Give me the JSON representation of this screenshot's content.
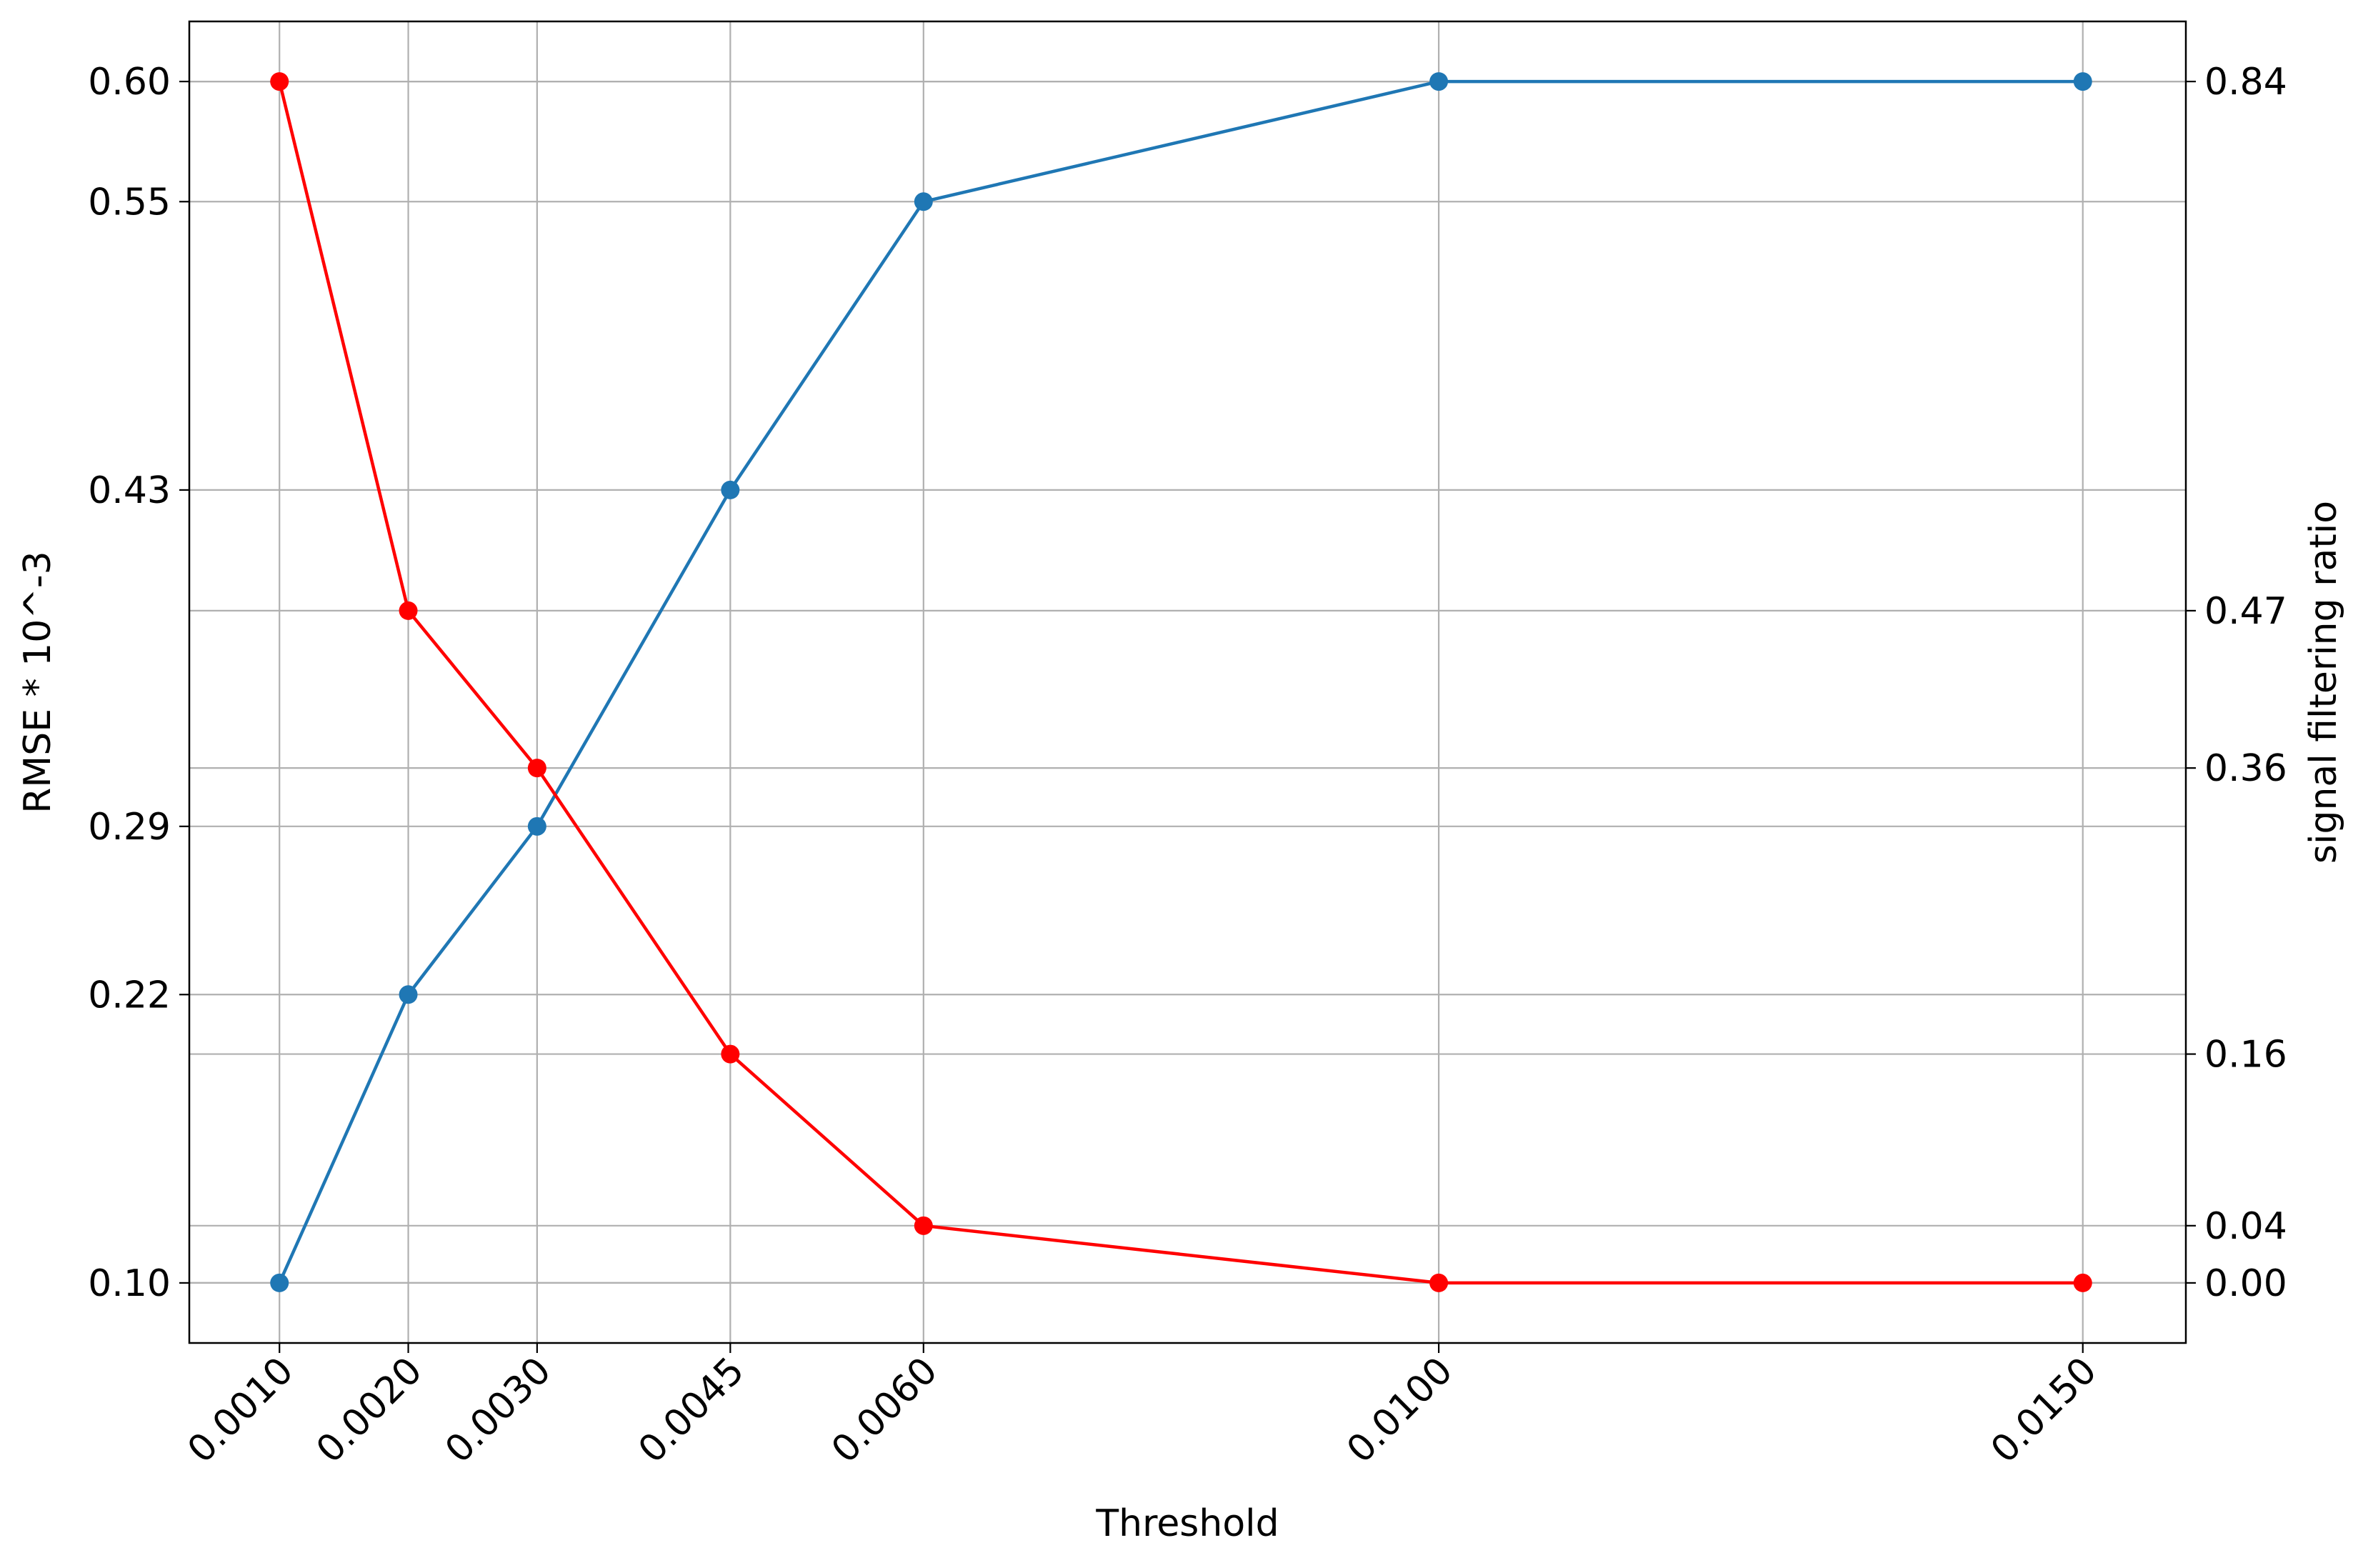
{
  "chart_data": {
    "type": "line",
    "xlabel": "Threshold",
    "ylabel_left": "RMSE * 10^-3",
    "ylabel_right": "signal filtering ratio",
    "x": [
      0.001,
      0.002,
      0.003,
      0.0045,
      0.006,
      0.01,
      0.015
    ],
    "x_tick_labels": [
      "0.0010",
      "0.0020",
      "0.0030",
      "0.0045",
      "0.0060",
      "0.0100",
      "0.0150"
    ],
    "xlim": [
      0.0003,
      0.0158
    ],
    "y_left_ticks": [
      "0.10",
      "0.22",
      "0.29",
      "0.43",
      "0.55",
      "0.60"
    ],
    "y_left_lim": [
      0.075,
      0.625
    ],
    "y_right_ticks": [
      "0.00",
      "0.04",
      "0.16",
      "0.36",
      "0.47",
      "0.84"
    ],
    "y_right_lim": [
      -0.042,
      0.882
    ],
    "grid": true,
    "series": [
      {
        "axis": "left",
        "color": "#1f77b4",
        "marker": "circle",
        "values": [
          0.1,
          0.22,
          0.29,
          0.43,
          0.55,
          0.6,
          0.6
        ]
      },
      {
        "axis": "right",
        "color": "#ff0000",
        "marker": "circle",
        "values": [
          0.84,
          0.47,
          0.36,
          0.16,
          0.04,
          0.0,
          0.0
        ]
      }
    ]
  }
}
